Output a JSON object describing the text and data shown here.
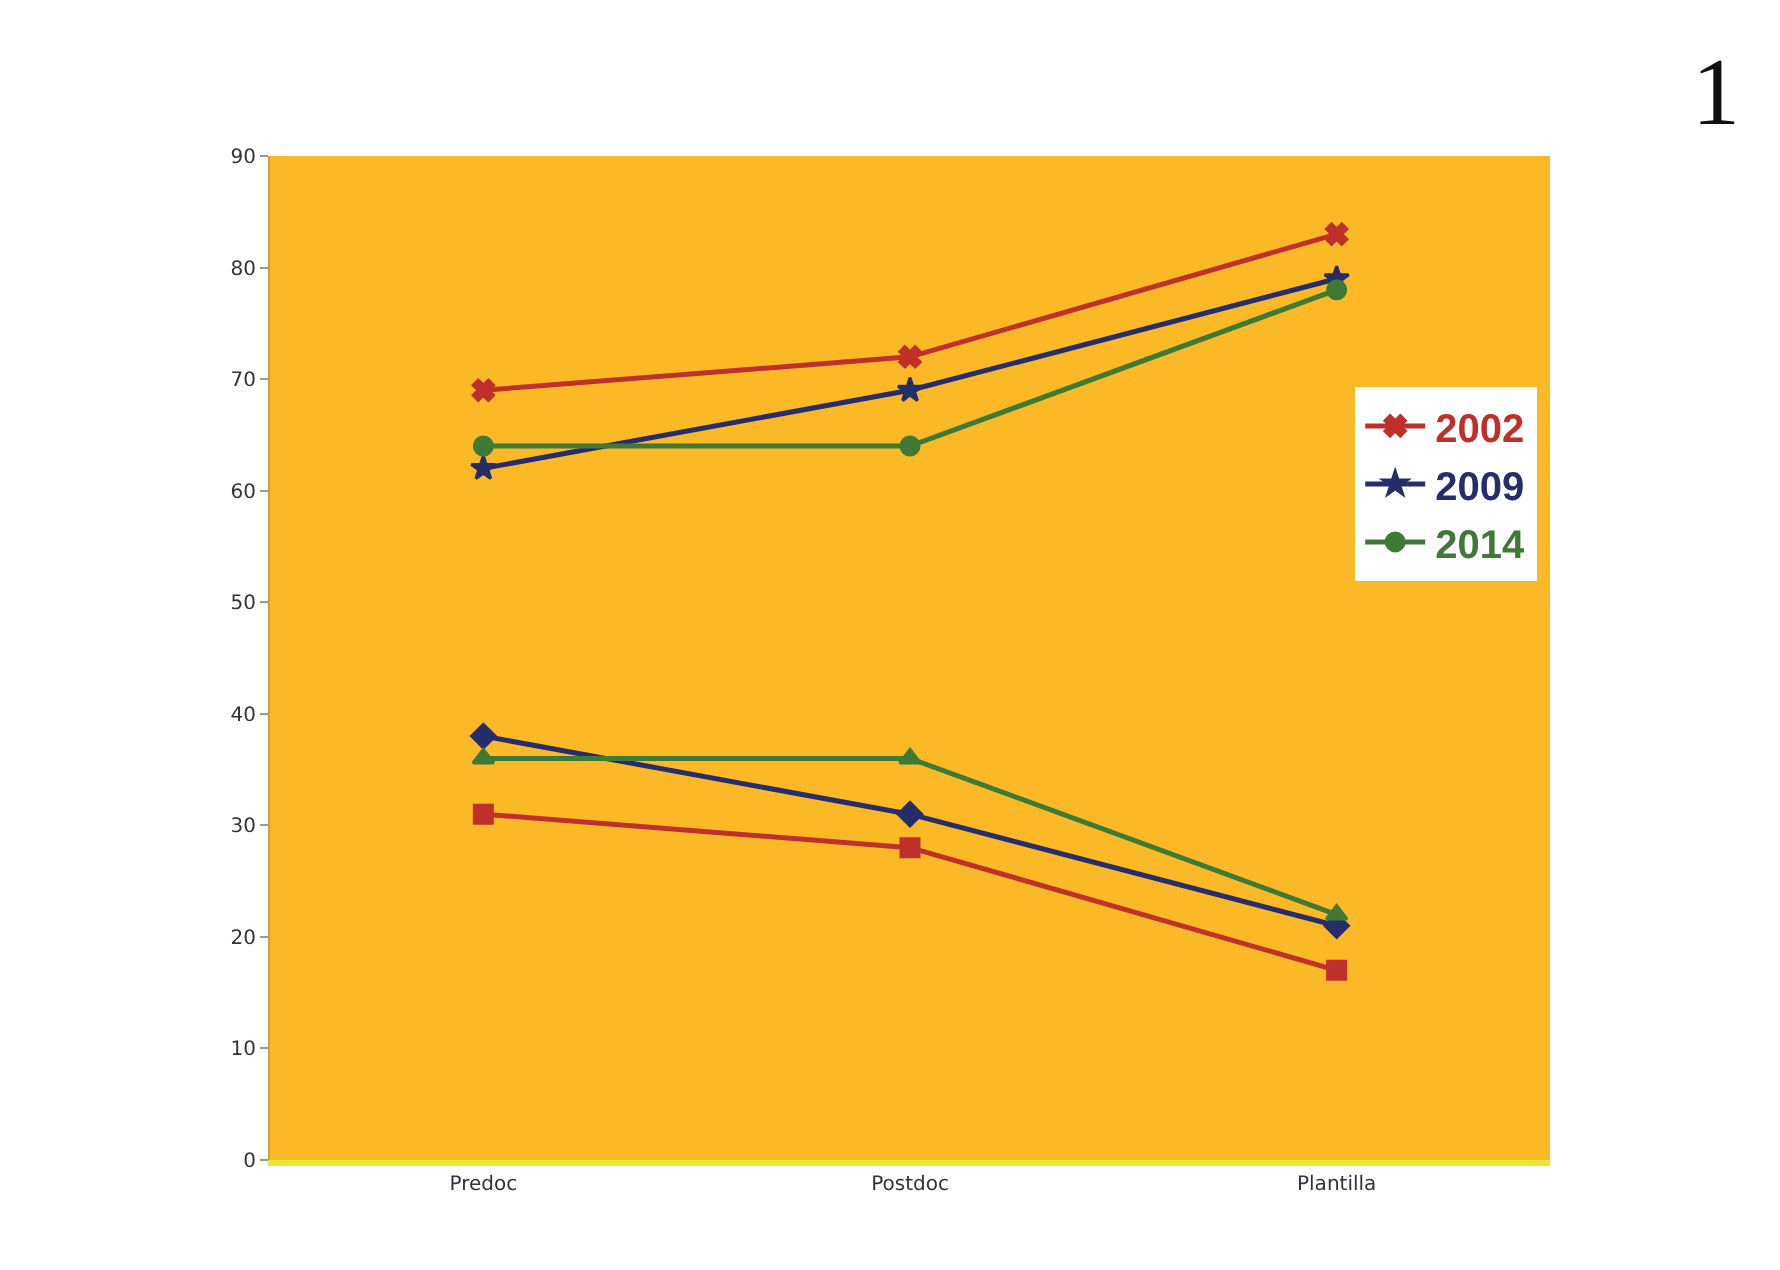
{
  "chart_data": {
    "type": "line",
    "categories": [
      "Predoc",
      "Postdoc",
      "Plantilla"
    ],
    "series": [
      {
        "name": "2002",
        "color": "#c0302a",
        "marker": "cross",
        "values": [
          69,
          72,
          83
        ]
      },
      {
        "name": "2009",
        "color": "#262d6b",
        "marker": "star",
        "values": [
          62,
          69,
          79
        ]
      },
      {
        "name": "2014",
        "color": "#3e7a35",
        "marker": "circle",
        "values": [
          64,
          64,
          78
        ]
      },
      {
        "color": "#c0302a",
        "marker": "square",
        "values": [
          31,
          28,
          17
        ]
      },
      {
        "color": "#262d6b",
        "marker": "diamond",
        "values": [
          38,
          31,
          21
        ]
      },
      {
        "color": "#3e7a35",
        "marker": "triangle",
        "values": [
          36,
          36,
          22
        ]
      }
    ],
    "ylim": [
      0,
      90
    ],
    "yticks": [
      0,
      10,
      20,
      30,
      40,
      50,
      60,
      70,
      80,
      90
    ],
    "grid": false,
    "legend": "right",
    "line_style": "solid",
    "annotations": [
      "1"
    ]
  }
}
